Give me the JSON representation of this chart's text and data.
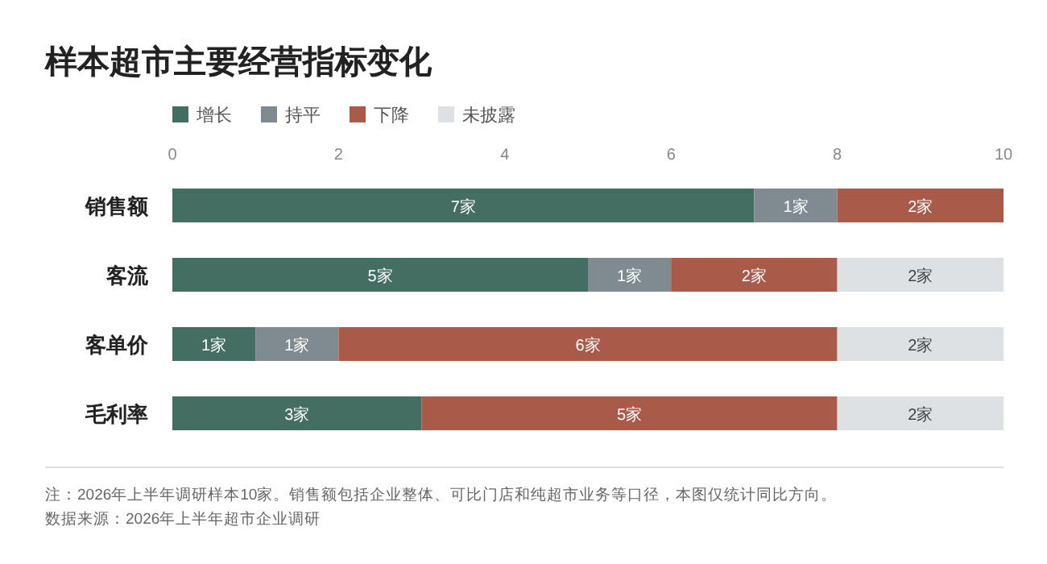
{
  "chart_data": {
    "type": "bar",
    "title": "样本超市主要经营指标变化",
    "orientation": "horizontal",
    "stacked": true,
    "legend": "top left",
    "grid": false,
    "categories": [
      "销售额",
      "客流",
      "客单价",
      "毛利率"
    ],
    "xlim": [
      0,
      10
    ],
    "xticks": [
      0,
      2,
      4,
      6,
      8,
      10
    ],
    "series": [
      {
        "name": "增长",
        "color": "#456e62",
        "values": [
          7,
          5,
          1,
          3
        ],
        "value_labels": [
          "7家",
          "5家",
          "1家",
          "3家"
        ]
      },
      {
        "name": "持平",
        "color": "#7f8b91",
        "values": [
          1,
          1,
          1,
          0
        ],
        "value_labels": [
          "1家",
          "1家",
          "1家",
          null
        ]
      },
      {
        "name": "下降",
        "color": "#a95a48",
        "values": [
          2,
          2,
          6,
          5
        ],
        "value_labels": [
          "2家",
          "2家",
          "6家",
          "5家"
        ]
      },
      {
        "name": "未披露",
        "color": "#dde1e3",
        "values": [
          0,
          2,
          2,
          2
        ],
        "value_labels": [
          null,
          "2家",
          "2家",
          "2家"
        ]
      }
    ],
    "annotations": [
      "注：2026年上半年调研样本10家。销售额包括企业整体、可比门店和纯超市业务等口径，本图仅统计同比方向。",
      "数据来源：2026年上半年超市企业调研"
    ]
  }
}
